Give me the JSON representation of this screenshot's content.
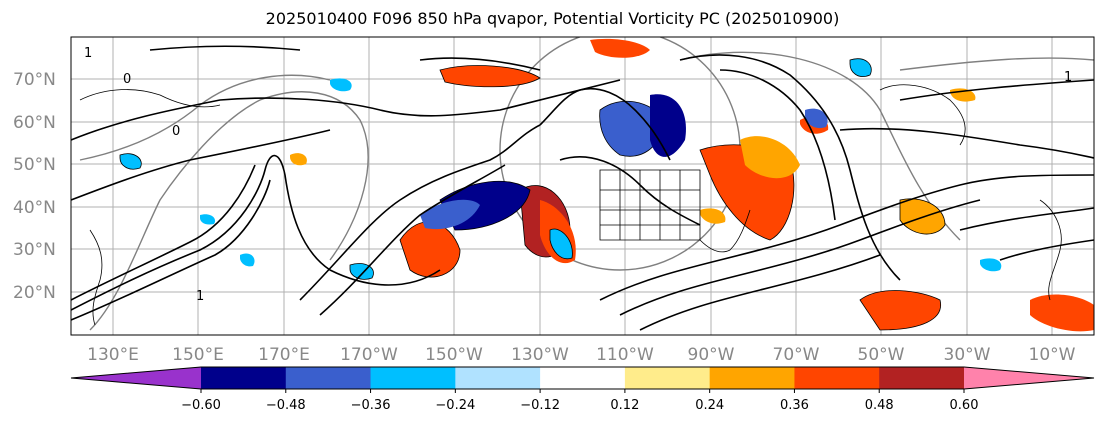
{
  "title": "2025010400 F096 850 hPa qvapor, Potential Vorticity PC (2025010900)",
  "lat_labels": [
    "70°N",
    "60°N",
    "50°N",
    "40°N",
    "30°N",
    "20°N"
  ],
  "lon_labels": [
    "130°E",
    "150°E",
    "170°E",
    "170°W",
    "150°W",
    "130°W",
    "110°W",
    "90°W",
    "70°W",
    "50°W",
    "30°W",
    "10°W"
  ],
  "colorbar": {
    "colors": [
      "#9932CC",
      "#00008B",
      "#3A5FCD",
      "#00BFFF",
      "#B0E2FF",
      "#FFFFFF",
      "#FFEC8B",
      "#FFA500",
      "#FF4500",
      "#B22222",
      "#FF82AB"
    ],
    "ticks": [
      "−0.60",
      "−0.48",
      "−0.36",
      "−0.24",
      "−0.12",
      "0.12",
      "0.24",
      "0.36",
      "0.48",
      "0.60"
    ]
  },
  "contour_labels": [
    "1",
    "0",
    "0",
    "1",
    "1"
  ],
  "colors": {
    "coast": "#000000",
    "contour": "#000000",
    "grid": "#999999",
    "jet_contour": "#808080"
  }
}
